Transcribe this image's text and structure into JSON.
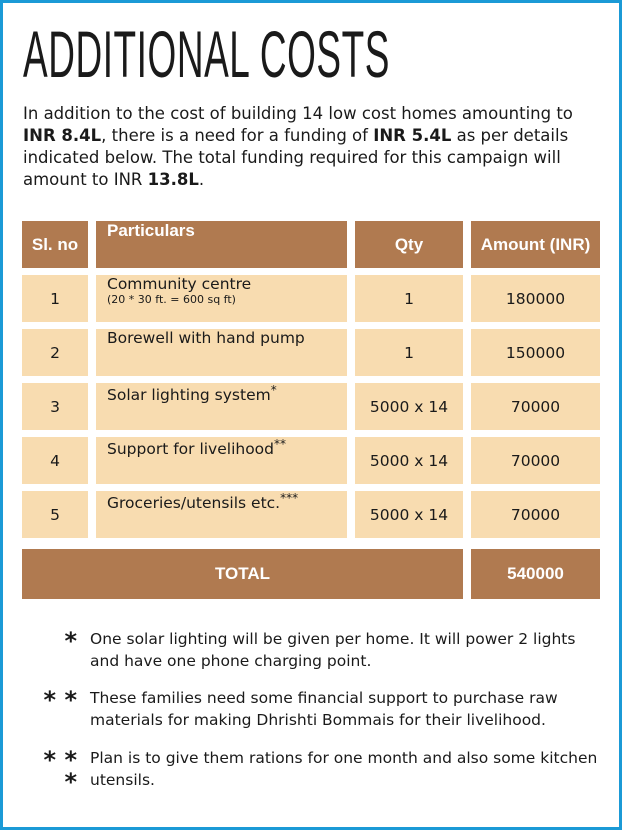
{
  "header": {
    "title": "ADDITIONAL COSTS"
  },
  "intro": {
    "parts": [
      "In addition to the cost of building 14 low cost homes amounting to ",
      "INR 8.4L",
      ", there is a need for a funding of ",
      "INR 5.4L",
      " as per details indicated below. The total funding required for this campaign will amount to INR ",
      "13.8L",
      "."
    ]
  },
  "table": {
    "columns": [
      "Sl. no",
      "Particulars",
      "Qty",
      "Amount (INR)"
    ],
    "rows": [
      {
        "sl": 1,
        "particular": "Community centre",
        "detail": "(20 * 30 ft. = 600 sq ft)",
        "qty": "1",
        "amount": 180000
      },
      {
        "sl": 2,
        "particular": "Borewell with hand pump",
        "qty": "1",
        "amount": 150000
      },
      {
        "sl": 3,
        "particular": "Solar lighting system",
        "note": "*",
        "qty": "5000 x 14",
        "amount": 70000
      },
      {
        "sl": 4,
        "particular": "Support for livelihood",
        "note": "**",
        "qty": "5000 x 14",
        "amount": 70000
      },
      {
        "sl": 5,
        "particular": "Groceries/utensils etc.",
        "note": "***",
        "qty": "5000 x 14",
        "amount": 70000
      }
    ],
    "total": {
      "label": "TOTAL",
      "amount": 540000
    }
  },
  "footnotes": [
    {
      "mark": "*",
      "text": "One solar lighting will be given per home. It will power 2 lights and have one phone charging point."
    },
    {
      "mark": "* *",
      "text": "These families need some financial support to purchase raw materials for making Dhrishti Bommais for their livelihood."
    },
    {
      "mark": "* * *",
      "text": "Plan is to give them rations for one month and also some kitchen utensils."
    }
  ]
}
